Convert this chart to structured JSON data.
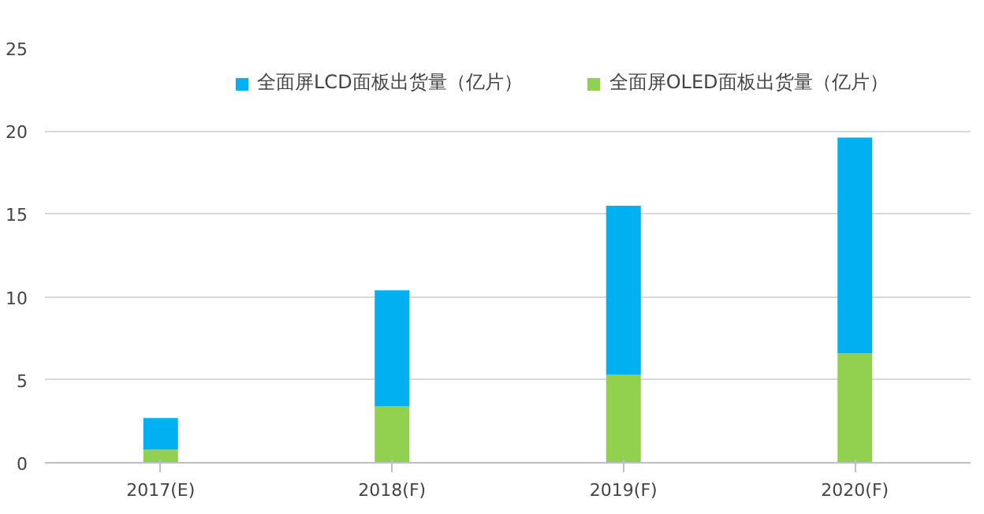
{
  "chart_data": {
    "type": "bar",
    "stacked": true,
    "categories": [
      "2017(E)",
      "2018(F)",
      "2019(F)",
      "2020(F)"
    ],
    "series": [
      {
        "name": "全面屏OLED面板出货量（亿片）",
        "color": "#92d050",
        "values": [
          0.8,
          3.4,
          5.3,
          6.6
        ]
      },
      {
        "name": "全面屏LCD面板出货量（亿片）",
        "color": "#00b0f0",
        "values": [
          1.9,
          7.0,
          10.2,
          13.0
        ]
      }
    ],
    "ylim": [
      0,
      25
    ],
    "yticks": [
      0,
      5,
      10,
      15,
      20,
      25
    ],
    "grid": "y",
    "legend": "top"
  }
}
